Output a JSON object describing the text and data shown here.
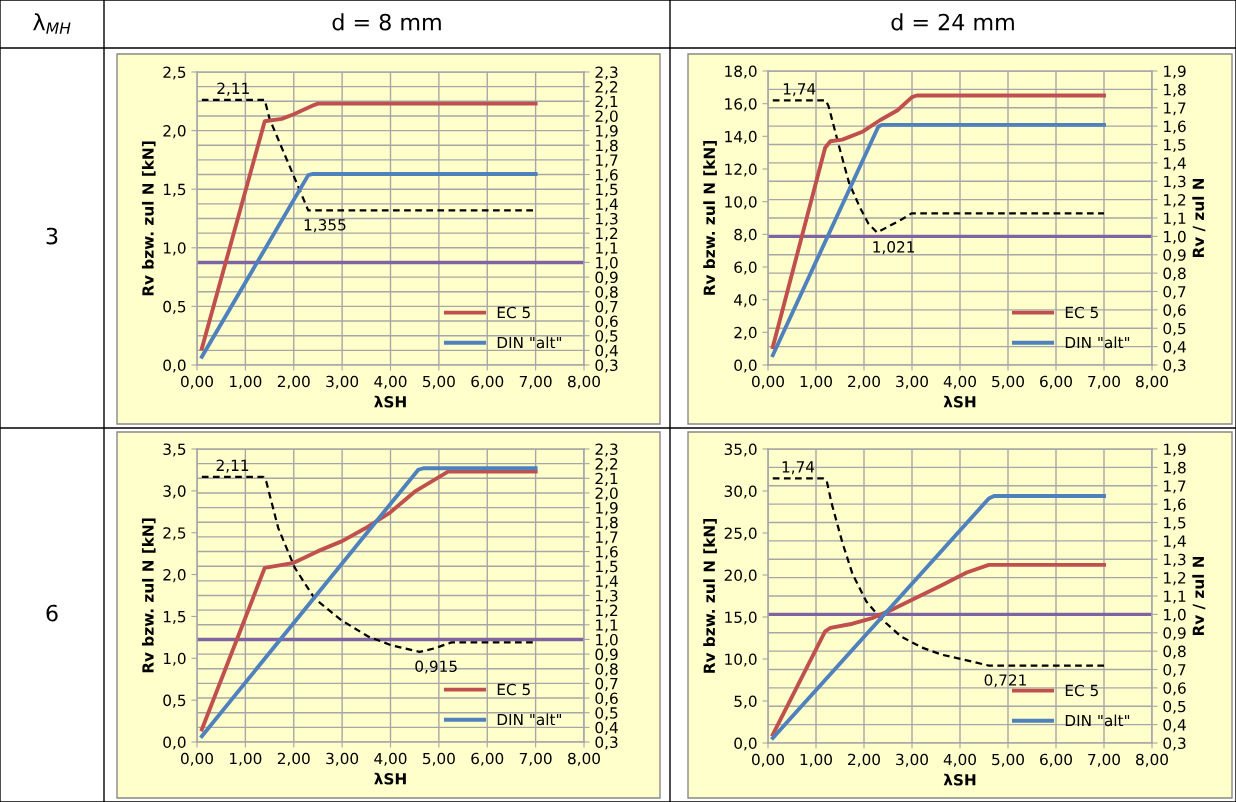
{
  "chart_data": [
    {
      "type": "line",
      "title": "d = 8 mm",
      "xlabel": "λSH",
      "ylabel": "Rv bzw. zul N [kN]",
      "xlim": [
        0,
        8
      ],
      "xticks": [
        {
          "value": 0,
          "label": "0,00"
        },
        {
          "value": 1,
          "label": "1,00"
        },
        {
          "value": 2,
          "label": "2,00"
        },
        {
          "value": 3,
          "label": "3,00"
        },
        {
          "value": 4,
          "label": "4,00"
        },
        {
          "value": 5,
          "label": "5,00"
        },
        {
          "value": 6,
          "label": "6,00"
        },
        {
          "value": 7,
          "label": "7,00"
        },
        {
          "value": 8,
          "label": "8,00"
        }
      ],
      "ylim": [
        0,
        2.5
      ],
      "yticks": [
        {
          "value": 0,
          "label": "0,0"
        },
        {
          "value": 0.5,
          "label": "0,5"
        },
        {
          "value": 1,
          "label": "1,0"
        },
        {
          "value": 1.5,
          "label": "1,5"
        },
        {
          "value": 2,
          "label": "2,0"
        },
        {
          "value": 2.5,
          "label": "2,5"
        }
      ],
      "y2lim": [
        0.3,
        2.3
      ],
      "y2ticks": [
        {
          "value": 0.3,
          "label": "0,3"
        },
        {
          "value": 0.4,
          "label": "0,4"
        },
        {
          "value": 0.5,
          "label": "0,5"
        },
        {
          "value": 0.6,
          "label": "0,6"
        },
        {
          "value": 0.7,
          "label": "0,7"
        },
        {
          "value": 0.8,
          "label": "0,8"
        },
        {
          "value": 0.9,
          "label": "0,9"
        },
        {
          "value": 1.0,
          "label": "1,0"
        },
        {
          "value": 1.1,
          "label": "1,1"
        },
        {
          "value": 1.2,
          "label": "1,2"
        },
        {
          "value": 1.3,
          "label": "1,3"
        },
        {
          "value": 1.4,
          "label": "1,4"
        },
        {
          "value": 1.5,
          "label": "1,5"
        },
        {
          "value": 1.6,
          "label": "1,6"
        },
        {
          "value": 1.7,
          "label": "1,7"
        },
        {
          "value": 1.8,
          "label": "1,8"
        },
        {
          "value": 1.9,
          "label": "1,9"
        },
        {
          "value": 2.0,
          "label": "2,0"
        },
        {
          "value": 2.1,
          "label": "2,1"
        },
        {
          "value": 2.2,
          "label": "2,2"
        },
        {
          "value": 2.3,
          "label": "2,3"
        }
      ],
      "series": [
        {
          "name": "EC 5",
          "color": "#c0504d",
          "x": [
            0.1,
            1.4,
            1.75,
            2.0,
            2.43,
            2.5,
            7.0
          ],
          "values": [
            0.14,
            2.08,
            2.1,
            2.14,
            2.22,
            2.23,
            2.23
          ]
        },
        {
          "name": "DIN \"alt\"",
          "color": "#4f81bd",
          "x": [
            0.1,
            2.3,
            2.4,
            7.0
          ],
          "values": [
            0.07,
            1.62,
            1.63,
            1.63
          ]
        },
        {
          "color": "#000000",
          "axis": "y2",
          "line_style": "dashed",
          "x": [
            0.1,
            1.4,
            1.5,
            2.3,
            7.0
          ],
          "values": [
            2.11,
            2.11,
            1.98,
            1.355,
            1.355
          ]
        }
      ],
      "ref_lines": [
        {
          "axis": "y2",
          "value": 1.0,
          "color": "#8064a2"
        }
      ],
      "annotations": [
        "λ$_{MH}$",
        "3",
        "2,11",
        "1,355"
      ],
      "grid": true,
      "legend": "bottom right"
    },
    {
      "type": "line",
      "title": "d = 24 mm",
      "xlabel": "λSH",
      "ylabel": "Rv bzw. zul N [kN]",
      "y2label": "Rv / zul N",
      "xlim": [
        0,
        8
      ],
      "xticks": [
        {
          "value": 0,
          "label": "0,00"
        },
        {
          "value": 1,
          "label": "1,00"
        },
        {
          "value": 2,
          "label": "2,00"
        },
        {
          "value": 3,
          "label": "3,00"
        },
        {
          "value": 4,
          "label": "4,00"
        },
        {
          "value": 5,
          "label": "5,00"
        },
        {
          "value": 6,
          "label": "6,00"
        },
        {
          "value": 7,
          "label": "7,00"
        },
        {
          "value": 8,
          "label": "8,00"
        }
      ],
      "ylim": [
        0,
        18
      ],
      "yticks": [
        {
          "value": 0,
          "label": "0,0"
        },
        {
          "value": 2,
          "label": "2,0"
        },
        {
          "value": 4,
          "label": "4,0"
        },
        {
          "value": 6,
          "label": "6,0"
        },
        {
          "value": 8,
          "label": "8,0"
        },
        {
          "value": 10,
          "label": "10,0"
        },
        {
          "value": 12,
          "label": "12,0"
        },
        {
          "value": 14,
          "label": "14,0"
        },
        {
          "value": 16,
          "label": "16,0"
        },
        {
          "value": 18,
          "label": "18,0"
        }
      ],
      "y2lim": [
        0.3,
        1.9
      ],
      "y2ticks": [
        {
          "value": 0.3,
          "label": "0,3"
        },
        {
          "value": 0.4,
          "label": "0,4"
        },
        {
          "value": 0.5,
          "label": "0,5"
        },
        {
          "value": 0.6,
          "label": "0,6"
        },
        {
          "value": 0.7,
          "label": "0,7"
        },
        {
          "value": 0.8,
          "label": "0,8"
        },
        {
          "value": 0.9,
          "label": "0,9"
        },
        {
          "value": 1.0,
          "label": "1,0"
        },
        {
          "value": 1.1,
          "label": "1,1"
        },
        {
          "value": 1.2,
          "label": "1,2"
        },
        {
          "value": 1.3,
          "label": "1,3"
        },
        {
          "value": 1.4,
          "label": "1,4"
        },
        {
          "value": 1.5,
          "label": "1,5"
        },
        {
          "value": 1.6,
          "label": "1,6"
        },
        {
          "value": 1.7,
          "label": "1,7"
        },
        {
          "value": 1.8,
          "label": "1,8"
        },
        {
          "value": 1.9,
          "label": "1,9"
        }
      ],
      "series": [
        {
          "name": "EC 5",
          "color": "#c0504d",
          "x": [
            0.1,
            1.19,
            1.3,
            1.55,
            1.98,
            2.34,
            2.7,
            3.0,
            3.1,
            7.0
          ],
          "values": [
            1.1,
            13.3,
            13.7,
            13.8,
            14.3,
            15.0,
            15.6,
            16.4,
            16.5,
            16.5
          ]
        },
        {
          "name": "DIN \"alt\"",
          "color": "#4f81bd",
          "x": [
            0.1,
            2.3,
            2.37,
            7.0
          ],
          "values": [
            0.6,
            14.6,
            14.7,
            14.7
          ]
        },
        {
          "color": "#000000",
          "axis": "y2",
          "line_style": "dashed",
          "x": [
            0.1,
            1.2,
            1.26,
            1.47,
            1.69,
            1.91,
            2.09,
            2.27,
            2.77,
            2.99,
            7.0
          ],
          "values": [
            1.74,
            1.74,
            1.71,
            1.5,
            1.29,
            1.16,
            1.07,
            1.021,
            1.09,
            1.125,
            1.125
          ]
        }
      ],
      "ref_lines": [
        {
          "axis": "y2",
          "value": 1.0,
          "color": "#8064a2"
        }
      ],
      "annotations": [
        "1,74",
        "1,021"
      ],
      "grid": true,
      "legend": "bottom right"
    },
    {
      "type": "line",
      "xlabel": "λSH",
      "ylabel": "Rv bzw. zul N [kN]",
      "xlim": [
        0,
        8
      ],
      "xticks": [
        {
          "value": 0,
          "label": "0,00"
        },
        {
          "value": 1,
          "label": "1,00"
        },
        {
          "value": 2,
          "label": "2,00"
        },
        {
          "value": 3,
          "label": "3,00"
        },
        {
          "value": 4,
          "label": "4,00"
        },
        {
          "value": 5,
          "label": "5,00"
        },
        {
          "value": 6,
          "label": "6,00"
        },
        {
          "value": 7,
          "label": "7,00"
        },
        {
          "value": 8,
          "label": "8,00"
        }
      ],
      "ylim": [
        0,
        3.5
      ],
      "yticks": [
        {
          "value": 0,
          "label": "0,0"
        },
        {
          "value": 0.5,
          "label": "0,5"
        },
        {
          "value": 1,
          "label": "1,0"
        },
        {
          "value": 1.5,
          "label": "1,5"
        },
        {
          "value": 2,
          "label": "2,0"
        },
        {
          "value": 2.5,
          "label": "2,5"
        },
        {
          "value": 3,
          "label": "3,0"
        },
        {
          "value": 3.5,
          "label": "3,5"
        }
      ],
      "y2lim": [
        0.3,
        2.3
      ],
      "y2ticks": [
        {
          "value": 0.3,
          "label": "0,3"
        },
        {
          "value": 0.4,
          "label": "0,4"
        },
        {
          "value": 0.5,
          "label": "0,5"
        },
        {
          "value": 0.6,
          "label": "0,6"
        },
        {
          "value": 0.7,
          "label": "0,7"
        },
        {
          "value": 0.8,
          "label": "0,8"
        },
        {
          "value": 0.9,
          "label": "0,9"
        },
        {
          "value": 1.0,
          "label": "1,0"
        },
        {
          "value": 1.1,
          "label": "1,1"
        },
        {
          "value": 1.2,
          "label": "1,2"
        },
        {
          "value": 1.3,
          "label": "1,3"
        },
        {
          "value": 1.4,
          "label": "1,4"
        },
        {
          "value": 1.5,
          "label": "1,5"
        },
        {
          "value": 1.6,
          "label": "1,6"
        },
        {
          "value": 1.7,
          "label": "1,7"
        },
        {
          "value": 1.8,
          "label": "1,8"
        },
        {
          "value": 1.9,
          "label": "1,9"
        },
        {
          "value": 2.0,
          "label": "2,0"
        },
        {
          "value": 2.1,
          "label": "2,1"
        },
        {
          "value": 2.2,
          "label": "2,2"
        },
        {
          "value": 2.3,
          "label": "2,3"
        }
      ],
      "series": [
        {
          "name": "EC 5",
          "color": "#c0504d",
          "x": [
            0.1,
            1.4,
            2.0,
            2.5,
            3.0,
            3.47,
            3.99,
            4.5,
            5.19,
            7.0
          ],
          "values": [
            0.15,
            2.08,
            2.14,
            2.28,
            2.4,
            2.55,
            2.74,
            2.99,
            3.23,
            3.23
          ]
        },
        {
          "name": "DIN \"alt\"",
          "color": "#4f81bd",
          "x": [
            0.1,
            4.57,
            4.68,
            7.0
          ],
          "values": [
            0.07,
            3.25,
            3.27,
            3.27
          ]
        },
        {
          "color": "#000000",
          "axis": "y2",
          "line_style": "dashed",
          "x": [
            0.1,
            1.37,
            1.43,
            1.68,
            2.02,
            2.43,
            2.99,
            3.54,
            4.02,
            4.6,
            4.92,
            5.26,
            7.0
          ],
          "values": [
            2.11,
            2.11,
            2.08,
            1.76,
            1.49,
            1.28,
            1.13,
            1.02,
            0.96,
            0.915,
            0.94,
            0.98,
            0.98
          ]
        }
      ],
      "ref_lines": [
        {
          "axis": "y2",
          "value": 1.0,
          "color": "#8064a2"
        }
      ],
      "annotations": [
        "6",
        "2,11",
        "0,915"
      ],
      "grid": true,
      "legend": "bottom right"
    },
    {
      "type": "line",
      "xlabel": "λSH",
      "ylabel": "Rv bzw. zul N [kN]",
      "y2label": "Rv / zul N",
      "xlim": [
        0,
        8
      ],
      "xticks": [
        {
          "value": 0,
          "label": "0,00"
        },
        {
          "value": 1,
          "label": "1,00"
        },
        {
          "value": 2,
          "label": "2,00"
        },
        {
          "value": 3,
          "label": "3,00"
        },
        {
          "value": 4,
          "label": "4,00"
        },
        {
          "value": 5,
          "label": "5,00"
        },
        {
          "value": 6,
          "label": "6,00"
        },
        {
          "value": 7,
          "label": "7,00"
        },
        {
          "value": 8,
          "label": "8,00"
        }
      ],
      "ylim": [
        0,
        35
      ],
      "yticks": [
        {
          "value": 0,
          "label": "0,0"
        },
        {
          "value": 5,
          "label": "5,0"
        },
        {
          "value": 10,
          "label": "10,0"
        },
        {
          "value": 15,
          "label": "15,0"
        },
        {
          "value": 20,
          "label": "20,0"
        },
        {
          "value": 25,
          "label": "25,0"
        },
        {
          "value": 30,
          "label": "30,0"
        },
        {
          "value": 35,
          "label": "35,0"
        }
      ],
      "y2lim": [
        0.3,
        1.9
      ],
      "y2ticks": [
        {
          "value": 0.3,
          "label": "0,3"
        },
        {
          "value": 0.4,
          "label": "0,4"
        },
        {
          "value": 0.5,
          "label": "0,5"
        },
        {
          "value": 0.6,
          "label": "0,6"
        },
        {
          "value": 0.7,
          "label": "0,7"
        },
        {
          "value": 0.8,
          "label": "0,8"
        },
        {
          "value": 0.9,
          "label": "0,9"
        },
        {
          "value": 1.0,
          "label": "1,0"
        },
        {
          "value": 1.1,
          "label": "1,1"
        },
        {
          "value": 1.2,
          "label": "1,2"
        },
        {
          "value": 1.3,
          "label": "1,3"
        },
        {
          "value": 1.4,
          "label": "1,4"
        },
        {
          "value": 1.5,
          "label": "1,5"
        },
        {
          "value": 1.6,
          "label": "1,6"
        },
        {
          "value": 1.7,
          "label": "1,7"
        },
        {
          "value": 1.8,
          "label": "1,8"
        },
        {
          "value": 1.9,
          "label": "1,9"
        }
      ],
      "series": [
        {
          "name": "EC 5",
          "color": "#c0504d",
          "x": [
            0.1,
            1.19,
            1.3,
            1.76,
            2.19,
            2.63,
            3.13,
            3.63,
            4.14,
            4.6,
            7.0
          ],
          "values": [
            1.0,
            13.3,
            13.7,
            14.2,
            14.9,
            16.0,
            17.4,
            18.8,
            20.3,
            21.2,
            21.2
          ]
        },
        {
          "name": "DIN \"alt\"",
          "color": "#4f81bd",
          "x": [
            0.1,
            4.6,
            4.71,
            7.0
          ],
          "values": [
            0.6,
            29.1,
            29.4,
            29.4
          ]
        },
        {
          "color": "#000000",
          "axis": "y2",
          "line_style": "dashed",
          "x": [
            0.1,
            1.15,
            1.22,
            1.33,
            1.55,
            1.76,
            2.05,
            2.34,
            2.77,
            3.2,
            3.63,
            4.14,
            4.6,
            7.0
          ],
          "values": [
            1.74,
            1.74,
            1.73,
            1.6,
            1.39,
            1.22,
            1.07,
            0.98,
            0.88,
            0.82,
            0.78,
            0.75,
            0.721,
            0.721
          ]
        }
      ],
      "ref_lines": [
        {
          "axis": "y2",
          "value": 1.0,
          "color": "#8064a2"
        }
      ],
      "annotations": [
        "1,74",
        "0,721"
      ],
      "grid": true,
      "legend": "bottom right"
    }
  ]
}
